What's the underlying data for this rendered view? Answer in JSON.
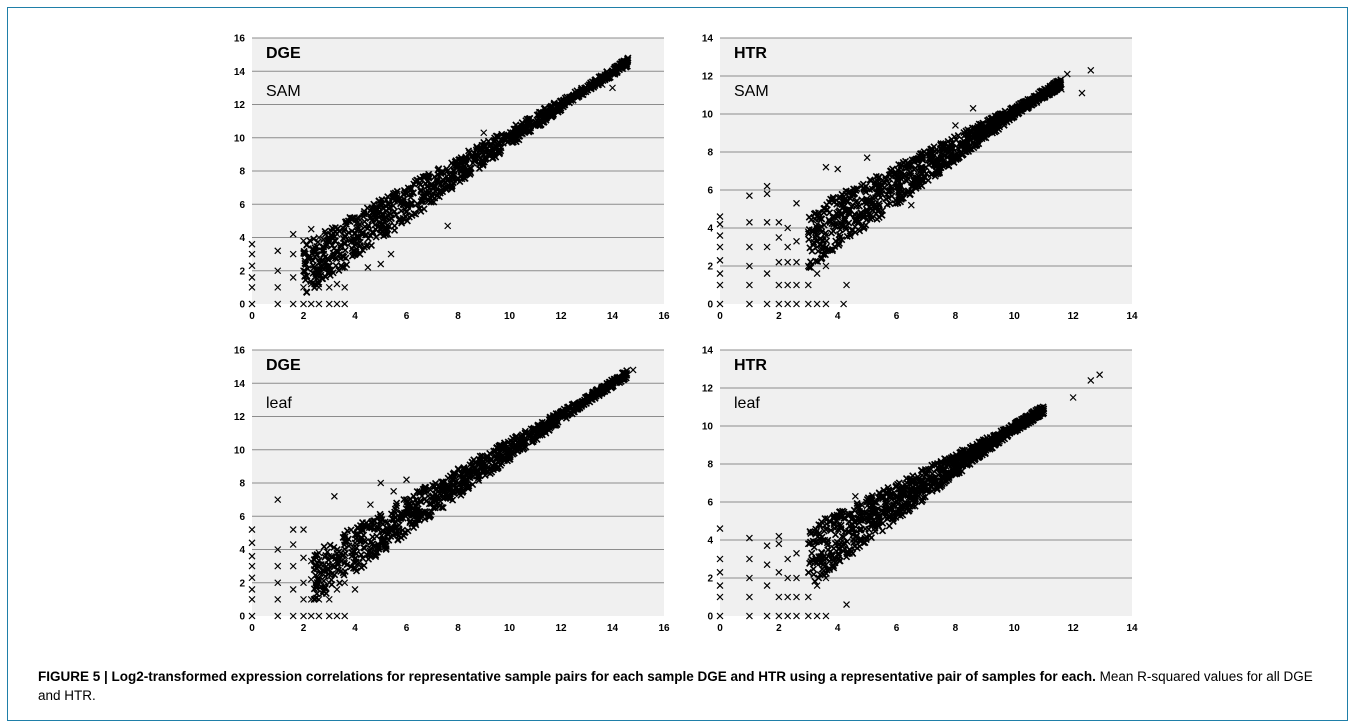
{
  "caption": {
    "label": "FIGURE 5 | Log2-transformed expression correlations for representative sample pairs for each sample DGE and HTR using a representative pair of samples for each.",
    "text": "Mean R-squared values for all DGE and HTR."
  },
  "style": {
    "plot_bg": "#f0f0f0",
    "grid": "#8c8c8c",
    "marker": "#000000",
    "frame_border": "#1f7fa8"
  },
  "chart_data": [
    {
      "type": "scatter",
      "title": "DGE",
      "subtitle": "SAM",
      "xlim": [
        0,
        16
      ],
      "ylim": [
        0,
        16
      ],
      "step": 2,
      "xticks": [
        "0",
        "2",
        "4",
        "6",
        "8",
        "10",
        "12",
        "14",
        "16"
      ],
      "yticks": [
        "0",
        "2",
        "4",
        "6",
        "8",
        "10",
        "12",
        "14",
        "16"
      ],
      "grid": "horizontal",
      "marker": "x",
      "points": [
        [
          0.0,
          0.0
        ],
        [
          0.0,
          1.0
        ],
        [
          0.0,
          1.6
        ],
        [
          0.0,
          2.3
        ],
        [
          0.0,
          3.0
        ],
        [
          0.0,
          3.6
        ],
        [
          1.0,
          0.0
        ],
        [
          1.0,
          1.0
        ],
        [
          1.0,
          2.0
        ],
        [
          1.0,
          3.2
        ],
        [
          1.6,
          0.0
        ],
        [
          1.6,
          1.6
        ],
        [
          1.6,
          3.0
        ],
        [
          1.6,
          4.2
        ],
        [
          2.0,
          0.0
        ],
        [
          2.0,
          1.0
        ],
        [
          2.0,
          2.0
        ],
        [
          2.0,
          3.8
        ],
        [
          2.3,
          0.0
        ],
        [
          2.3,
          1.2
        ],
        [
          2.3,
          2.8
        ],
        [
          2.3,
          4.5
        ],
        [
          2.6,
          0.0
        ],
        [
          2.6,
          1.0
        ],
        [
          2.6,
          2.2
        ],
        [
          2.6,
          4.0
        ],
        [
          3.0,
          0.0
        ],
        [
          3.0,
          1.0
        ],
        [
          3.0,
          2.0
        ],
        [
          3.0,
          3.8
        ],
        [
          3.3,
          0.0
        ],
        [
          3.3,
          1.2
        ],
        [
          3.3,
          2.7
        ],
        [
          3.3,
          4.2
        ],
        [
          3.6,
          0.0
        ],
        [
          3.6,
          1.0
        ],
        [
          3.6,
          2.2
        ],
        [
          3.6,
          4.5
        ],
        [
          4.5,
          2.2
        ],
        [
          5.0,
          2.4
        ],
        [
          5.4,
          3.0
        ],
        [
          4.8,
          5.8
        ],
        [
          6.8,
          6.6
        ],
        [
          7.6,
          4.7
        ],
        [
          9.0,
          10.3
        ],
        [
          10.2,
          10.2
        ],
        [
          11.6,
          11.6
        ],
        [
          12.8,
          12.6
        ],
        [
          13.6,
          13.2
        ],
        [
          14.0,
          13.0
        ],
        [
          14.5,
          14.6
        ],
        [
          14.2,
          14.3
        ]
      ],
      "trend": {
        "slope": 0.99,
        "intercept": 0.1,
        "x_from": 2.0,
        "x_to": 14.6
      }
    },
    {
      "type": "scatter",
      "title": "HTR",
      "subtitle": "SAM",
      "xlim": [
        0,
        14
      ],
      "ylim": [
        0,
        14
      ],
      "step": 2,
      "xticks": [
        "0",
        "2",
        "4",
        "6",
        "8",
        "10",
        "12",
        "14"
      ],
      "yticks": [
        "0",
        "2",
        "4",
        "6",
        "8",
        "10",
        "12",
        "14"
      ],
      "grid": "horizontal",
      "marker": "x",
      "points": [
        [
          0.0,
          0.0
        ],
        [
          0.0,
          1.0
        ],
        [
          0.0,
          1.6
        ],
        [
          0.0,
          2.3
        ],
        [
          0.0,
          3.0
        ],
        [
          0.0,
          3.6
        ],
        [
          0.0,
          4.2
        ],
        [
          0.0,
          4.6
        ],
        [
          1.0,
          0.0
        ],
        [
          1.0,
          1.0
        ],
        [
          1.0,
          2.0
        ],
        [
          1.0,
          3.0
        ],
        [
          1.0,
          4.3
        ],
        [
          1.0,
          5.7
        ],
        [
          1.6,
          0.0
        ],
        [
          1.6,
          1.6
        ],
        [
          1.6,
          3.0
        ],
        [
          1.6,
          4.3
        ],
        [
          1.6,
          5.8
        ],
        [
          1.6,
          6.2
        ],
        [
          2.0,
          0.0
        ],
        [
          2.0,
          1.0
        ],
        [
          2.0,
          2.2
        ],
        [
          2.0,
          3.5
        ],
        [
          2.0,
          4.3
        ],
        [
          2.3,
          0.0
        ],
        [
          2.3,
          1.0
        ],
        [
          2.3,
          2.2
        ],
        [
          2.3,
          3.0
        ],
        [
          2.3,
          4.0
        ],
        [
          2.6,
          0.0
        ],
        [
          2.6,
          1.0
        ],
        [
          2.6,
          2.2
        ],
        [
          2.6,
          3.3
        ],
        [
          2.6,
          5.3
        ],
        [
          3.0,
          0.0
        ],
        [
          3.0,
          1.0
        ],
        [
          3.0,
          2.0
        ],
        [
          3.0,
          3.8
        ],
        [
          3.3,
          0.0
        ],
        [
          3.3,
          1.6
        ],
        [
          3.3,
          3.0
        ],
        [
          3.3,
          4.2
        ],
        [
          3.6,
          0.0
        ],
        [
          3.6,
          2.0
        ],
        [
          3.6,
          3.6
        ],
        [
          3.6,
          7.2
        ],
        [
          4.2,
          0.0
        ],
        [
          4.3,
          1.0
        ],
        [
          4.0,
          7.1
        ],
        [
          5.0,
          7.7
        ],
        [
          6.5,
          5.2
        ],
        [
          8.0,
          9.4
        ],
        [
          8.6,
          10.3
        ],
        [
          10.5,
          10.4
        ],
        [
          11.0,
          11.2
        ],
        [
          11.6,
          11.3
        ],
        [
          11.8,
          12.1
        ],
        [
          12.3,
          11.1
        ],
        [
          12.6,
          12.3
        ]
      ],
      "trend": {
        "slope": 0.96,
        "intercept": 0.5,
        "x_from": 3.0,
        "x_to": 11.6
      }
    },
    {
      "type": "scatter",
      "title": "DGE",
      "subtitle": "leaf",
      "xlim": [
        0,
        16
      ],
      "ylim": [
        0,
        16
      ],
      "step": 2,
      "xticks": [
        "0",
        "2",
        "4",
        "6",
        "8",
        "10",
        "12",
        "14",
        "16"
      ],
      "yticks": [
        "0",
        "2",
        "4",
        "6",
        "8",
        "10",
        "12",
        "14",
        "16"
      ],
      "grid": "horizontal",
      "marker": "x",
      "points": [
        [
          0.0,
          0.0
        ],
        [
          0.0,
          1.0
        ],
        [
          0.0,
          1.6
        ],
        [
          0.0,
          2.3
        ],
        [
          0.0,
          3.0
        ],
        [
          0.0,
          3.6
        ],
        [
          0.0,
          4.4
        ],
        [
          0.0,
          5.2
        ],
        [
          1.0,
          0.0
        ],
        [
          1.0,
          1.0
        ],
        [
          1.0,
          2.0
        ],
        [
          1.0,
          3.0
        ],
        [
          1.0,
          4.0
        ],
        [
          1.0,
          7.0
        ],
        [
          1.6,
          0.0
        ],
        [
          1.6,
          1.6
        ],
        [
          1.6,
          3.0
        ],
        [
          1.6,
          4.3
        ],
        [
          1.6,
          5.2
        ],
        [
          2.0,
          0.0
        ],
        [
          2.0,
          1.0
        ],
        [
          2.0,
          2.0
        ],
        [
          2.0,
          3.5
        ],
        [
          2.0,
          5.2
        ],
        [
          2.3,
          0.0
        ],
        [
          2.3,
          1.0
        ],
        [
          2.3,
          2.2
        ],
        [
          2.3,
          3.3
        ],
        [
          2.6,
          0.0
        ],
        [
          2.6,
          1.0
        ],
        [
          2.6,
          2.2
        ],
        [
          2.6,
          3.8
        ],
        [
          3.0,
          0.0
        ],
        [
          3.0,
          1.0
        ],
        [
          3.0,
          2.0
        ],
        [
          3.0,
          3.6
        ],
        [
          3.3,
          0.0
        ],
        [
          3.3,
          1.6
        ],
        [
          3.3,
          2.8
        ],
        [
          3.2,
          7.2
        ],
        [
          3.6,
          0.0
        ],
        [
          3.6,
          2.0
        ],
        [
          3.6,
          3.3
        ],
        [
          4.0,
          1.6
        ],
        [
          4.6,
          6.7
        ],
        [
          5.0,
          8.0
        ],
        [
          5.5,
          7.5
        ],
        [
          6.0,
          8.2
        ],
        [
          9.0,
          8.8
        ],
        [
          10.2,
          10.2
        ],
        [
          11.6,
          11.5
        ],
        [
          12.6,
          12.6
        ],
        [
          13.7,
          13.7
        ],
        [
          14.8,
          14.8
        ]
      ],
      "trend": {
        "slope": 1.0,
        "intercept": 0.0,
        "x_from": 2.4,
        "x_to": 14.6
      }
    },
    {
      "type": "scatter",
      "title": "HTR",
      "subtitle": "leaf",
      "xlim": [
        0,
        14
      ],
      "ylim": [
        0,
        14
      ],
      "step": 2,
      "xticks": [
        "0",
        "2",
        "4",
        "6",
        "8",
        "10",
        "12",
        "14"
      ],
      "yticks": [
        "0",
        "2",
        "4",
        "6",
        "8",
        "10",
        "12",
        "14"
      ],
      "grid": "horizontal",
      "marker": "x",
      "points": [
        [
          0.0,
          0.0
        ],
        [
          0.0,
          1.0
        ],
        [
          0.0,
          1.6
        ],
        [
          0.0,
          2.3
        ],
        [
          0.0,
          3.0
        ],
        [
          0.0,
          4.6
        ],
        [
          1.0,
          0.0
        ],
        [
          1.0,
          1.0
        ],
        [
          1.0,
          2.0
        ],
        [
          1.0,
          3.0
        ],
        [
          1.0,
          4.1
        ],
        [
          1.6,
          0.0
        ],
        [
          1.6,
          1.6
        ],
        [
          1.6,
          2.7
        ],
        [
          1.6,
          3.7
        ],
        [
          2.0,
          0.0
        ],
        [
          2.0,
          1.0
        ],
        [
          2.0,
          2.3
        ],
        [
          2.0,
          3.8
        ],
        [
          2.0,
          4.2
        ],
        [
          2.3,
          0.0
        ],
        [
          2.3,
          1.0
        ],
        [
          2.3,
          2.0
        ],
        [
          2.3,
          3.0
        ],
        [
          2.6,
          0.0
        ],
        [
          2.6,
          1.0
        ],
        [
          2.6,
          2.0
        ],
        [
          2.6,
          3.3
        ],
        [
          3.0,
          0.0
        ],
        [
          3.0,
          1.0
        ],
        [
          3.0,
          2.3
        ],
        [
          3.0,
          3.8
        ],
        [
          3.3,
          0.0
        ],
        [
          3.3,
          1.6
        ],
        [
          3.3,
          3.0
        ],
        [
          3.3,
          4.5
        ],
        [
          3.6,
          0.0
        ],
        [
          3.6,
          2.0
        ],
        [
          3.6,
          3.0
        ],
        [
          4.3,
          0.6
        ],
        [
          4.6,
          6.3
        ],
        [
          5.0,
          5.8
        ],
        [
          6.0,
          6.8
        ],
        [
          8.0,
          8.0
        ],
        [
          9.5,
          9.2
        ],
        [
          10.5,
          10.5
        ],
        [
          11.0,
          10.8
        ],
        [
          12.0,
          11.5
        ],
        [
          12.6,
          12.4
        ],
        [
          12.9,
          12.7
        ]
      ],
      "trend": {
        "slope": 0.97,
        "intercept": 0.2,
        "x_from": 3.0,
        "x_to": 11.0
      }
    }
  ]
}
